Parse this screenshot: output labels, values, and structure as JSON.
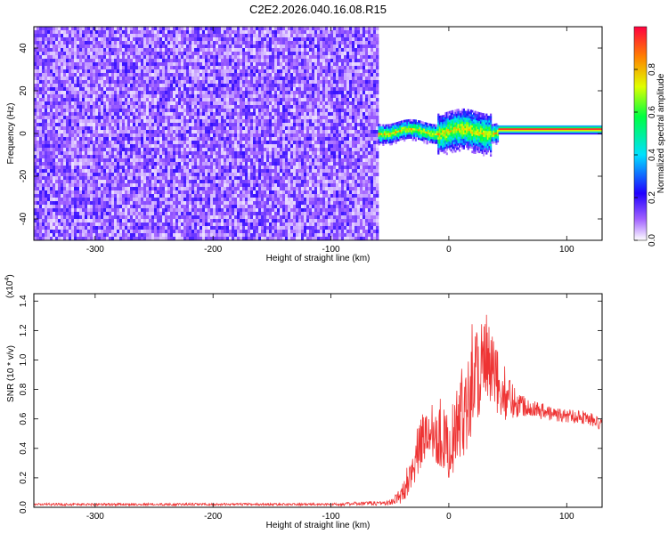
{
  "title": "C2E2.2026.040.16.08.R15",
  "chart_data": [
    {
      "type": "heatmap",
      "xlabel": "Height of straight line (km)",
      "ylabel": "Frequency (Hz)",
      "xlim": [
        -352,
        130
      ],
      "ylim": [
        -50,
        50
      ],
      "x_ticks": [
        -300,
        -200,
        -100,
        0,
        100
      ],
      "y_ticks": [
        -40,
        -20,
        0,
        20,
        40
      ],
      "colorbar": {
        "label": "Normalized spectral amplitude",
        "range": [
          0,
          1
        ],
        "ticks": [
          0.0,
          0.2,
          0.4,
          0.6,
          0.8
        ],
        "colors": [
          "#ffffff",
          "#8b00ff",
          "#0000ff",
          "#00ffff",
          "#00ff00",
          "#ffff00",
          "#ff8000",
          "#ff0000"
        ]
      },
      "regions": [
        {
          "x": [
            -352,
            -60
          ],
          "y": [
            -50,
            50
          ],
          "description": "broadband noise",
          "amplitude": 0.15
        },
        {
          "x": [
            -60,
            42
          ],
          "y": [
            -3,
            8
          ],
          "description": "signal band",
          "amplitude": 0.6
        },
        {
          "x": [
            42,
            130
          ],
          "y": [
            0,
            4
          ],
          "description": "steady line",
          "amplitude": 1.0
        }
      ]
    },
    {
      "type": "line",
      "xlabel": "Height of straight line (km)",
      "ylabel": "SNR (10 * v/v)",
      "scale_label": "(x10",
      "scale_exp": "4",
      "xlim": [
        -352,
        130
      ],
      "ylim": [
        0,
        1.45
      ],
      "x_ticks": [
        -300,
        -200,
        -100,
        0,
        100
      ],
      "y_ticks": [
        0.0,
        0.2,
        0.4,
        0.6,
        0.8,
        1.0,
        1.2,
        1.4
      ],
      "series": [
        {
          "color": "#ee3333",
          "x": [
            -352,
            -300,
            -200,
            -100,
            -50,
            -40,
            -30,
            -20,
            -10,
            0,
            10,
            20,
            30,
            40,
            50,
            60,
            70,
            80,
            90,
            100,
            110,
            120,
            130
          ],
          "y": [
            0.02,
            0.02,
            0.02,
            0.02,
            0.03,
            0.08,
            0.3,
            0.5,
            0.55,
            0.4,
            0.6,
            0.9,
            1.0,
            0.85,
            0.75,
            0.7,
            0.68,
            0.65,
            0.63,
            0.62,
            0.62,
            0.6,
            0.55
          ],
          "noise_envelope": [
            0,
            0,
            0,
            0,
            0.01,
            0.05,
            0.15,
            0.2,
            0.25,
            0.2,
            0.3,
            0.4,
            0.35,
            0.25,
            0.15,
            0.08,
            0.05,
            0.05,
            0.04,
            0.04,
            0.04,
            0.04,
            0.04
          ]
        }
      ]
    }
  ],
  "tick_format": {
    "x": [
      "-300",
      "-200",
      "-100",
      "0",
      "100"
    ],
    "y_top": [
      "-40",
      "-20",
      "0",
      "20",
      "40"
    ],
    "y_bottom": [
      "0.0",
      "0.2",
      "0.4",
      "0.6",
      "0.8",
      "1.0",
      "1.2",
      "1.4"
    ],
    "colorbar": [
      "0.0",
      "0.2",
      "0.4",
      "0.6",
      "0.8"
    ]
  }
}
